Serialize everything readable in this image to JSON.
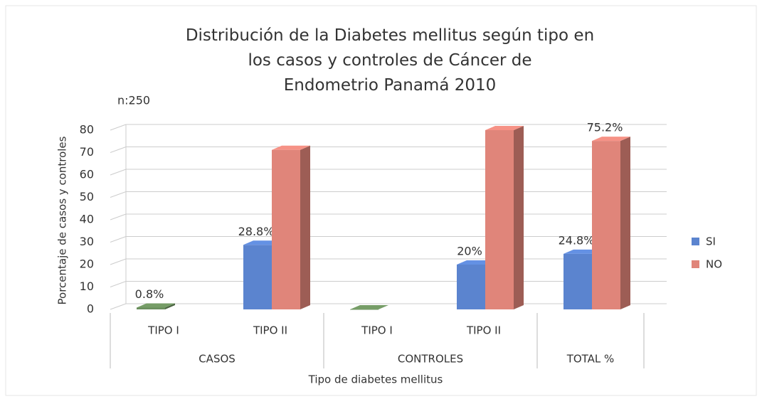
{
  "chart_data": {
    "type": "bar3d",
    "title": "Distribución de la Diabetes mellitus según tipo en los casos y controles de Cáncer de Endometrio Panamá 2010",
    "annotation": "n:250",
    "y_label": "Porcentaje de casos y controles",
    "x_label": "Tipo de diabetes mellitus",
    "categories": [
      "TIPO I",
      "TIPO II",
      "TIPO I",
      "TIPO II",
      null
    ],
    "category_groups": [
      "CASOS",
      "CASOS",
      "CONTROLES",
      "CONTROLES",
      "TOTAL %"
    ],
    "series": [
      {
        "name": "SI",
        "color": "#5b84cf",
        "point_colors": [
          "#6b8f5e",
          "#5b84cf",
          "#6b8f5e",
          "#5b84cf",
          "#5b84cf"
        ],
        "values": [
          0.8,
          28.8,
          0,
          20,
          24.8
        ],
        "value_labels": [
          "0.8%",
          "28.8%",
          null,
          "20%",
          "24.8%"
        ]
      },
      {
        "name": "NO",
        "color": "#e0857a",
        "values": [
          null,
          71.2,
          null,
          80,
          75.2
        ],
        "value_labels": [
          null,
          null,
          null,
          null,
          "75.2%"
        ]
      }
    ],
    "ylim": [
      0,
      80
    ],
    "yticks": [
      0,
      10,
      20,
      30,
      40,
      50,
      60,
      70,
      80
    ],
    "grid": true,
    "legend": "right"
  }
}
